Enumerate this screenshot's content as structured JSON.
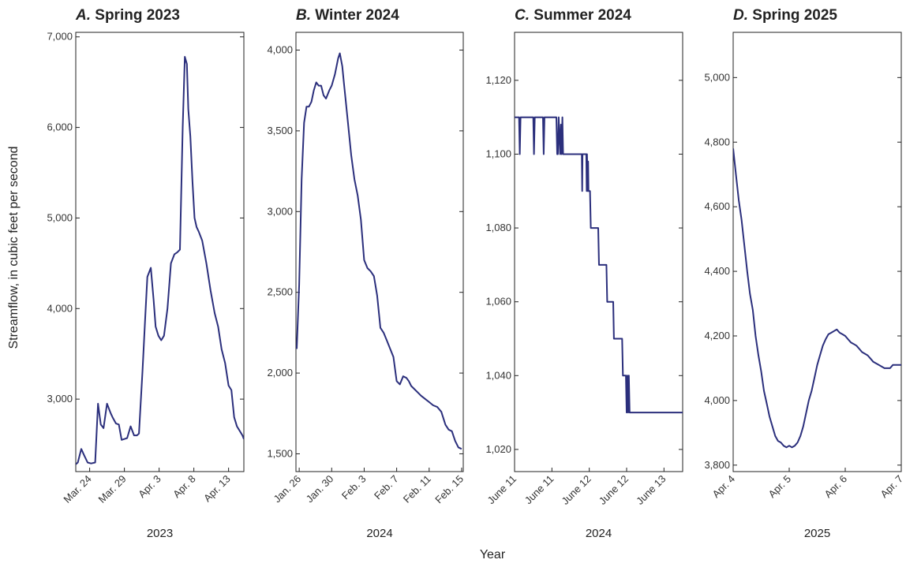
{
  "figure": {
    "ylabel": "Streamflow, in cubic feet per second",
    "xlabel": "Year",
    "line_color": "#2b2f7c"
  },
  "chart_data": [
    {
      "type": "line",
      "letter": "A.",
      "title": "Spring 2023",
      "year_label": "2023",
      "x_unit": "days since Mar. 22, 2023",
      "xlim": [
        0,
        24.2
      ],
      "ylim": [
        2200,
        7050
      ],
      "yticks": [
        3000,
        4000,
        5000,
        6000,
        7000
      ],
      "ytick_labels": [
        "3,000",
        "4,000",
        "5,000",
        "6,000",
        "7,000"
      ],
      "xticks": [
        2,
        7,
        12,
        17,
        22
      ],
      "xtick_labels": [
        "Mar. 24",
        "Mar. 29",
        "Apr. 3",
        "Apr. 8",
        "Apr. 13"
      ],
      "series": [
        {
          "x": [
            0,
            0.3,
            0.8,
            1.2,
            1.7,
            2.2,
            2.8,
            3.2,
            3.6,
            4.0,
            4.5,
            5.0,
            5.3,
            5.8,
            6.2,
            6.6,
            7.0,
            7.4,
            7.9,
            8.4,
            8.8,
            9.1,
            9.3,
            9.6,
            10.0,
            10.3,
            10.8,
            11.2,
            11.5,
            11.9,
            12.3,
            12.7,
            13.2,
            13.7,
            14.2,
            14.6,
            15.0,
            15.4,
            15.7,
            16.0,
            16.2,
            16.5,
            16.8,
            17.1,
            17.4,
            17.7,
            18.2,
            18.8,
            19.4,
            20.0,
            20.5,
            21.0,
            21.5,
            22.0,
            22.4,
            22.8,
            23.2,
            23.6,
            24.0,
            24.2
          ],
          "y": [
            2280,
            2300,
            2450,
            2380,
            2300,
            2290,
            2300,
            2950,
            2720,
            2680,
            2950,
            2850,
            2800,
            2730,
            2720,
            2550,
            2560,
            2570,
            2700,
            2600,
            2600,
            2620,
            2900,
            3300,
            3900,
            4350,
            4450,
            4100,
            3800,
            3700,
            3650,
            3700,
            4000,
            4500,
            4600,
            4620,
            4650,
            6000,
            6780,
            6700,
            6200,
            5900,
            5400,
            5000,
            4900,
            4850,
            4750,
            4500,
            4200,
            3950,
            3800,
            3550,
            3400,
            3150,
            3100,
            2800,
            2700,
            2650,
            2600,
            2560
          ]
        }
      ]
    },
    {
      "type": "line",
      "letter": "B.",
      "title": "Winter 2024",
      "year_label": "2024",
      "x_unit": "days since Jan. 26, 2024",
      "xlim": [
        -0.4,
        20.2
      ],
      "ylim": [
        1390,
        4110
      ],
      "yticks": [
        1500,
        2000,
        2500,
        3000,
        3500,
        4000
      ],
      "ytick_labels": [
        "1,500",
        "2,000",
        "2,500",
        "3,000",
        "3,500",
        "4,000"
      ],
      "xticks": [
        0,
        4,
        8,
        12,
        16,
        20
      ],
      "xtick_labels": [
        "Jan. 26",
        "Jan. 30",
        "Feb. 3",
        "Feb. 7",
        "Feb. 11",
        "Feb. 15"
      ],
      "series": [
        {
          "x": [
            -0.3,
            0,
            0.3,
            0.6,
            0.9,
            1.2,
            1.5,
            1.8,
            2.1,
            2.4,
            2.7,
            3.0,
            3.3,
            3.7,
            4.0,
            4.4,
            4.8,
            5.0,
            5.3,
            5.5,
            5.7,
            6.0,
            6.4,
            6.8,
            7.2,
            7.6,
            8.0,
            8.4,
            8.8,
            9.2,
            9.6,
            10.0,
            10.4,
            10.8,
            11.2,
            11.6,
            12.0,
            12.4,
            12.8,
            13.2,
            13.5,
            13.8,
            14.2,
            14.6,
            15.0,
            15.5,
            16.0,
            16.5,
            17.0,
            17.5,
            18.0,
            18.4,
            18.8,
            19.2,
            19.6,
            20.0
          ],
          "y": [
            2150,
            2550,
            3200,
            3550,
            3650,
            3650,
            3680,
            3750,
            3800,
            3780,
            3780,
            3720,
            3700,
            3750,
            3780,
            3850,
            3950,
            3980,
            3900,
            3800,
            3700,
            3550,
            3350,
            3200,
            3100,
            2950,
            2700,
            2650,
            2630,
            2600,
            2480,
            2280,
            2250,
            2200,
            2150,
            2100,
            1950,
            1930,
            1980,
            1970,
            1950,
            1920,
            1900,
            1880,
            1860,
            1840,
            1820,
            1800,
            1790,
            1760,
            1680,
            1650,
            1640,
            1580,
            1540,
            1530
          ]
        }
      ]
    },
    {
      "type": "line",
      "letter": "C.",
      "title": "Summer 2024",
      "year_label": "2024",
      "x_unit": "days since June 11, 2024",
      "xlim": [
        0,
        2.25
      ],
      "ylim": [
        1014,
        1133
      ],
      "yticks": [
        1020,
        1040,
        1060,
        1080,
        1100,
        1120
      ],
      "ytick_labels": [
        "1,020",
        "1,040",
        "1,060",
        "1,080",
        "1,100",
        "1,120"
      ],
      "xticks": [
        0,
        0.5,
        1.0,
        1.5,
        2.0
      ],
      "xtick_labels": [
        "June 11",
        "June 11",
        "June 12",
        "June 12",
        "June 13"
      ],
      "series": [
        {
          "x": [
            0,
            0.03,
            0.06,
            0.07,
            0.08,
            0.25,
            0.26,
            0.27,
            0.28,
            0.38,
            0.39,
            0.4,
            0.41,
            0.42,
            0.43,
            0.44,
            0.56,
            0.57,
            0.58,
            0.59,
            0.6,
            0.61,
            0.62,
            0.63,
            0.64,
            0.65,
            0.66,
            0.9,
            0.905,
            0.91,
            0.915,
            0.96,
            0.965,
            0.97,
            0.98,
            0.985,
            0.99,
            1.0,
            1.01,
            1.02,
            1.03,
            1.04,
            1.12,
            1.13,
            1.23,
            1.24,
            1.32,
            1.33,
            1.44,
            1.45,
            1.49,
            1.5,
            1.51,
            1.52,
            1.53,
            1.54,
            1.55,
            1.56,
            1.58,
            2.25
          ],
          "y": [
            1110,
            1110,
            1110,
            1100,
            1110,
            1110,
            1100,
            1110,
            1110,
            1110,
            1100,
            1110,
            1110,
            1110,
            1110,
            1110,
            1110,
            1100,
            1100,
            1110,
            1105,
            1100,
            1108,
            1100,
            1110,
            1100,
            1100,
            1100,
            1090,
            1100,
            1100,
            1100,
            1090,
            1100,
            1090,
            1098,
            1090,
            1090,
            1090,
            1080,
            1080,
            1080,
            1080,
            1070,
            1070,
            1060,
            1060,
            1050,
            1050,
            1040,
            1040,
            1030,
            1040,
            1030,
            1040,
            1030,
            1030,
            1030,
            1030,
            1030
          ]
        }
      ]
    },
    {
      "type": "line",
      "letter": "D.",
      "title": "Spring 2025",
      "year_label": "2025",
      "x_unit": "days since Apr. 4, 2025",
      "xlim": [
        0,
        3.0
      ],
      "ylim": [
        3780,
        5140
      ],
      "yticks": [
        3800,
        4000,
        4200,
        4400,
        4600,
        4800,
        5000
      ],
      "ytick_labels": [
        "3,800",
        "4,000",
        "4,200",
        "4,400",
        "4,600",
        "4,800",
        "5,000"
      ],
      "xticks": [
        0,
        1,
        2,
        3
      ],
      "xtick_labels": [
        "Apr. 4",
        "Apr. 5",
        "Apr. 6",
        "Apr. 7"
      ],
      "series": [
        {
          "x": [
            0,
            0.05,
            0.1,
            0.15,
            0.2,
            0.25,
            0.3,
            0.35,
            0.4,
            0.45,
            0.5,
            0.55,
            0.6,
            0.65,
            0.7,
            0.75,
            0.8,
            0.85,
            0.9,
            0.95,
            1.0,
            1.05,
            1.1,
            1.15,
            1.2,
            1.25,
            1.3,
            1.35,
            1.4,
            1.45,
            1.5,
            1.55,
            1.6,
            1.65,
            1.7,
            1.75,
            1.8,
            1.85,
            1.9,
            1.95,
            2.0,
            2.05,
            2.1,
            2.15,
            2.2,
            2.25,
            2.3,
            2.35,
            2.4,
            2.45,
            2.5,
            2.55,
            2.6,
            2.65,
            2.7,
            2.75,
            2.8,
            2.85,
            2.9,
            2.95,
            3.0
          ],
          "y": [
            4780,
            4700,
            4620,
            4560,
            4480,
            4400,
            4330,
            4280,
            4200,
            4140,
            4090,
            4030,
            3990,
            3950,
            3920,
            3890,
            3875,
            3870,
            3860,
            3855,
            3860,
            3855,
            3860,
            3870,
            3890,
            3920,
            3960,
            4000,
            4030,
            4070,
            4110,
            4140,
            4170,
            4190,
            4205,
            4210,
            4215,
            4220,
            4210,
            4205,
            4200,
            4190,
            4180,
            4175,
            4170,
            4160,
            4150,
            4145,
            4140,
            4130,
            4120,
            4115,
            4110,
            4105,
            4100,
            4100,
            4100,
            4110,
            4110,
            4110,
            4110
          ]
        }
      ]
    }
  ]
}
